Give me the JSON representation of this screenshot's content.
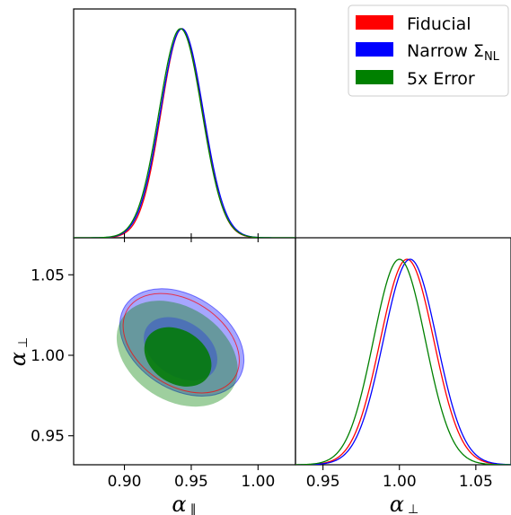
{
  "chart_data": {
    "type": "corner-plot",
    "parameters": [
      {
        "symbol": "α",
        "subscript": "∥",
        "range": [
          0.862,
          1.028
        ],
        "ticks": [
          0.9,
          0.95,
          1.0
        ],
        "tick_labels": [
          "0.90",
          "0.95",
          "1.00"
        ]
      },
      {
        "symbol": "α",
        "subscript": "⊥",
        "range": [
          0.932,
          1.073
        ],
        "ticks": [
          0.95,
          1.0,
          1.05
        ],
        "tick_labels": [
          "0.95",
          "1.00",
          "1.05"
        ]
      }
    ],
    "legend": {
      "placement": "top-right",
      "entries": [
        {
          "label": "Fiducial",
          "subscript": "",
          "color": "#ff0000"
        },
        {
          "label": "Narrow Σ",
          "subscript": "NL",
          "color": "#0000ff"
        },
        {
          "label": "5x Error",
          "subscript": "",
          "color": "#008000"
        }
      ]
    },
    "series": [
      {
        "key": "fiducial",
        "color": "#ff0000",
        "alpha_par": {
          "mean": 0.943,
          "sigma": 0.0155
        },
        "alpha_perp": {
          "mean": 1.005,
          "sigma": 0.0175
        },
        "contour_2sigma": {
          "cx": 0.9425,
          "cy": 1.0075,
          "a": 0.0475,
          "b": 0.0265,
          "angle_deg": -33
        }
      },
      {
        "key": "narrow",
        "color": "#0000ff",
        "alpha_par": {
          "mean": 0.943,
          "sigma": 0.016
        },
        "alpha_perp": {
          "mean": 1.007,
          "sigma": 0.0175
        },
        "contour_1sigma": {
          "cx": 0.942,
          "cy": 1.004,
          "a": 0.03,
          "b": 0.017,
          "angle_deg": -33
        },
        "contour_2sigma": {
          "cx": 0.943,
          "cy": 1.008,
          "a": 0.0505,
          "b": 0.029,
          "angle_deg": -33
        }
      },
      {
        "key": "five_x_error",
        "color": "#008000",
        "alpha_par": {
          "mean": 0.942,
          "sigma": 0.016
        },
        "alpha_perp": {
          "mean": 1.0,
          "sigma": 0.017
        },
        "contour_1sigma": {
          "cx": 0.94,
          "cy": 0.999,
          "a": 0.027,
          "b": 0.0165,
          "angle_deg": -33
        },
        "contour_2sigma": {
          "cx": 0.9395,
          "cy": 1.001,
          "a": 0.049,
          "b": 0.029,
          "angle_deg": -33
        }
      }
    ],
    "grid": false
  }
}
